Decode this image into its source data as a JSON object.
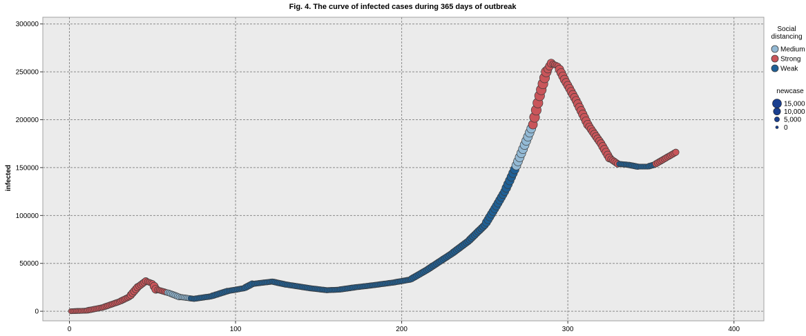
{
  "chart_data": {
    "type": "scatter",
    "title": "Fig. 4. The curve of infected cases during 365 days of outbreak",
    "xlabel": "",
    "ylabel": "infected",
    "xlim": [
      -16,
      418
    ],
    "ylim": [
      -10000,
      307000
    ],
    "x_ticks": [
      0,
      100,
      200,
      300,
      400
    ],
    "x_tick_labels": [
      "0",
      "100",
      "200",
      "300",
      "400"
    ],
    "y_ticks": [
      0,
      50000,
      100000,
      150000,
      200000,
      250000,
      300000
    ],
    "y_tick_labels": [
      "0",
      "50000",
      "100000",
      "150000",
      "200000",
      "250000",
      "300000"
    ],
    "grid": true,
    "legend_position": "right",
    "color_legend": {
      "title_lines": [
        "Social",
        "distancing"
      ],
      "entries": [
        {
          "label": "Medium",
          "color": "#93b9d4"
        },
        {
          "label": "Strong",
          "color": "#c9555a"
        },
        {
          "label": "Weak",
          "color": "#1f6096"
        }
      ]
    },
    "size_legend": {
      "title": "newcase",
      "entries": [
        {
          "label": "15,000",
          "value": 15000
        },
        {
          "label": "10,000",
          "value": 10000
        },
        {
          "label": "5,000",
          "value": 5000
        },
        {
          "label": "0",
          "value": 0
        }
      ],
      "color": "#1a3f8f"
    },
    "knots": [
      [
        1,
        0
      ],
      [
        10,
        600
      ],
      [
        20,
        4000
      ],
      [
        30,
        10000
      ],
      [
        36,
        15000
      ],
      [
        41,
        25000
      ],
      [
        46,
        31500
      ],
      [
        50,
        29000
      ],
      [
        52,
        23000
      ],
      [
        60,
        19000
      ],
      [
        66,
        15000
      ],
      [
        75,
        13000
      ],
      [
        85,
        15500
      ],
      [
        95,
        21000
      ],
      [
        105,
        24000
      ],
      [
        110,
        28500
      ],
      [
        122,
        31000
      ],
      [
        130,
        28000
      ],
      [
        145,
        24000
      ],
      [
        155,
        22000
      ],
      [
        162,
        22500
      ],
      [
        172,
        25000
      ],
      [
        182,
        27000
      ],
      [
        195,
        30000
      ],
      [
        205,
        33000
      ],
      [
        215,
        43000
      ],
      [
        230,
        60000
      ],
      [
        240,
        73000
      ],
      [
        250,
        90000
      ],
      [
        257,
        110000
      ],
      [
        262,
        125000
      ],
      [
        268,
        148000
      ],
      [
        272,
        165000
      ],
      [
        275,
        178000
      ],
      [
        279,
        195000
      ],
      [
        283,
        225000
      ],
      [
        287,
        250000
      ],
      [
        290,
        259000
      ],
      [
        294,
        256000
      ],
      [
        298,
        242000
      ],
      [
        305,
        220000
      ],
      [
        312,
        195000
      ],
      [
        320,
        175000
      ],
      [
        325,
        160000
      ],
      [
        330,
        154000
      ],
      [
        336,
        153000
      ],
      [
        342,
        151000
      ],
      [
        348,
        151000
      ],
      [
        352,
        153000
      ],
      [
        358,
        159000
      ],
      [
        365,
        166000
      ]
    ],
    "segments": [
      {
        "from": 1,
        "to": 50,
        "level": "Strong"
      },
      {
        "from": 51,
        "to": 58,
        "level": "Strong"
      },
      {
        "from": 59,
        "to": 72,
        "level": "Medium"
      },
      {
        "from": 73,
        "to": 268,
        "level": "Weak"
      },
      {
        "from": 269,
        "to": 278,
        "level": "Medium"
      },
      {
        "from": 279,
        "to": 330,
        "level": "Strong"
      },
      {
        "from": 331,
        "to": 352,
        "level": "Weak"
      },
      {
        "from": 353,
        "to": 365,
        "level": "Strong"
      }
    ]
  }
}
